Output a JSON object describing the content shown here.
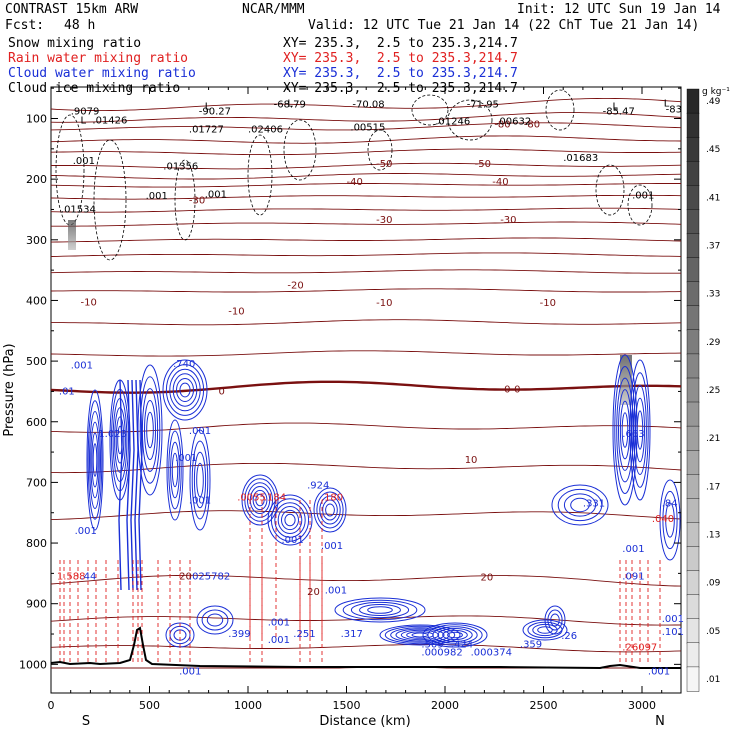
{
  "header": {
    "model": "CONTRAST 15km ARW",
    "org": "NCAR/MMM",
    "init": "Init: 12 UTC Sun 19 Jan 14",
    "fcst_label": "Fcst:",
    "fcst_value": "48 h",
    "valid": "Valid: 12 UTC Tue 21 Jan 14 (22 ChT Tue 21 Jan 14)",
    "fields": [
      {
        "name": "Snow mixing ratio",
        "xy": "XY= 235.3,  2.5 to 235.3,214.7",
        "color": "#000000"
      },
      {
        "name": "Rain water mixing ratio",
        "xy": "XY= 235.3,  2.5 to 235.3,214.7",
        "color": "#e02020"
      },
      {
        "name": "Cloud water mixing ratio",
        "xy": "XY= 235.3,  2.5 to 235.3,214.7",
        "color": "#1a2fd6"
      },
      {
        "name": "Cloud ice mixing ratio",
        "xy": "XY= 235.3,  2.5 to 235.3,214.7",
        "color": "#000000"
      }
    ]
  },
  "colors": {
    "isotherm": "#7a1010",
    "rain": "#e02020",
    "cloud_water": "#1a2fd6",
    "snow": "#000000",
    "terrain": "#000000"
  },
  "chart_data": {
    "type": "cross-section",
    "xlabel": "Distance (km)",
    "ylabel": "Pressure (hPa)",
    "xlim": [
      0,
      3200
    ],
    "ylim": [
      1050,
      50
    ],
    "x_ticks": [
      0,
      500,
      1000,
      1500,
      2000,
      2500,
      3000
    ],
    "y_ticks": [
      100,
      200,
      300,
      400,
      500,
      600,
      700,
      800,
      900,
      1000
    ],
    "end_labels": {
      "left": "S",
      "right": "N"
    },
    "colorbar": {
      "unit": "g kg⁻¹",
      "labels": [
        ".01",
        ".05",
        ".09",
        ".13",
        ".17",
        ".21",
        ".25",
        ".29",
        ".33",
        ".37",
        ".41",
        ".45",
        ".49"
      ]
    },
    "isotherm_labels": [
      {
        "x": 1200,
        "p": 380,
        "text": "-20"
      },
      {
        "x": 700,
        "p": 240,
        "text": "-30"
      },
      {
        "x": 1650,
        "p": 272,
        "text": "-30"
      },
      {
        "x": 2280,
        "p": 272,
        "text": "-30"
      },
      {
        "x": 1500,
        "p": 210,
        "text": "-40"
      },
      {
        "x": 2240,
        "p": 210,
        "text": "-40"
      },
      {
        "x": 1650,
        "p": 180,
        "text": "-50"
      },
      {
        "x": 2150,
        "p": 180,
        "text": "-50"
      },
      {
        "x": 150,
        "p": 408,
        "text": "-10"
      },
      {
        "x": 900,
        "p": 423,
        "text": "-10"
      },
      {
        "x": 1650,
        "p": 409,
        "text": "-10"
      },
      {
        "x": 2480,
        "p": 409,
        "text": "-10"
      },
      {
        "x": 850,
        "p": 555,
        "text": "0"
      },
      {
        "x": 2300,
        "p": 552,
        "text": "0-0"
      },
      {
        "x": 2100,
        "p": 668,
        "text": "10"
      },
      {
        "x": 650,
        "p": 860,
        "text": "20"
      },
      {
        "x": 2180,
        "p": 862,
        "text": "20"
      },
      {
        "x": 1300,
        "p": 886,
        "text": "20"
      },
      {
        "x": 2250,
        "p": 115,
        "text": "-80"
      },
      {
        "x": 2400,
        "p": 115,
        "text": "-80"
      }
    ],
    "extrema": [
      {
        "x": 150,
        "p": 108,
        "text": "L"
      },
      {
        "x": 100,
        "p": 93,
        "text": ".9079"
      },
      {
        "x": 780,
        "p": 85,
        "text": "L"
      },
      {
        "x": 750,
        "p": 93,
        "text": "-90.27"
      },
      {
        "x": 1200,
        "p": 80,
        "text": "L"
      },
      {
        "x": 1130,
        "p": 82,
        "text": "-68.79"
      },
      {
        "x": 1530,
        "p": 82,
        "text": "-70.08"
      },
      {
        "x": 2110,
        "p": 82,
        "text": "-71.95"
      },
      {
        "x": 2850,
        "p": 85,
        "text": "L"
      },
      {
        "x": 2800,
        "p": 93,
        "text": "-85.47"
      },
      {
        "x": 3110,
        "p": 80,
        "text": "L"
      },
      {
        "x": 3120,
        "p": 90,
        "text": "-83"
      },
      {
        "x": 210,
        "p": 108,
        "text": ".01426"
      },
      {
        "x": 700,
        "p": 123,
        "text": ".01727"
      },
      {
        "x": 1000,
        "p": 123,
        "text": ".02406"
      },
      {
        "x": 1520,
        "p": 120,
        "text": ".00515"
      },
      {
        "x": 1950,
        "p": 110,
        "text": ".01246"
      },
      {
        "x": 2260,
        "p": 110,
        "text": ".00632"
      },
      {
        "x": 2600,
        "p": 170,
        "text": ".01683"
      },
      {
        "x": 570,
        "p": 184,
        "text": ".01356"
      },
      {
        "x": 50,
        "p": 255,
        "text": ".01534"
      },
      {
        "x": 110,
        "p": 175,
        "text": ".001"
      },
      {
        "x": 480,
        "p": 233,
        "text": ".001"
      },
      {
        "x": 780,
        "p": 230,
        "text": ".001"
      },
      {
        "x": 2950,
        "p": 232,
        "text": ".001"
      },
      {
        "x": 100,
        "p": 512,
        "text": ".001"
      },
      {
        "x": 620,
        "p": 510,
        "text": ".740"
      },
      {
        "x": 40,
        "p": 555,
        "text": ".01"
      },
      {
        "x": 240,
        "p": 625,
        "text": "1.023"
      },
      {
        "x": 700,
        "p": 620,
        "text": ".001"
      },
      {
        "x": 630,
        "p": 665,
        "text": ".001"
      },
      {
        "x": 2900,
        "p": 625,
        "text": ".663"
      },
      {
        "x": 1300,
        "p": 710,
        "text": ".924"
      },
      {
        "x": 945,
        "p": 730,
        "text": ".0055"
      },
      {
        "x": 1080,
        "p": 730,
        "text": ".184"
      },
      {
        "x": 1370,
        "p": 730,
        "text": ".180"
      },
      {
        "x": 2700,
        "p": 740,
        "text": ".331"
      },
      {
        "x": 3100,
        "p": 740,
        "text": ".84"
      },
      {
        "x": 3050,
        "p": 765,
        "text": ".040"
      },
      {
        "x": 120,
        "p": 785,
        "text": ".001"
      },
      {
        "x": 700,
        "p": 735,
        "text": ".001"
      },
      {
        "x": 1170,
        "p": 800,
        "text": ".001"
      },
      {
        "x": 1370,
        "p": 810,
        "text": ".001"
      },
      {
        "x": 2900,
        "p": 815,
        "text": ".001"
      },
      {
        "x": 30,
        "p": 860,
        "text": "1.588"
      },
      {
        "x": 150,
        "p": 860,
        "text": ".44"
      },
      {
        "x": 700,
        "p": 860,
        "text": ".025782"
      },
      {
        "x": 2900,
        "p": 860,
        "text": ".091"
      },
      {
        "x": 1390,
        "p": 883,
        "text": ".001"
      },
      {
        "x": 1100,
        "p": 936,
        "text": ".001"
      },
      {
        "x": 900,
        "p": 955,
        "text": ".399"
      },
      {
        "x": 1100,
        "p": 965,
        "text": ".001"
      },
      {
        "x": 1230,
        "p": 955,
        "text": ".251"
      },
      {
        "x": 1470,
        "p": 955,
        "text": ".317"
      },
      {
        "x": 1880,
        "p": 972,
        "text": ".509"
      },
      {
        "x": 2030,
        "p": 972,
        "text": ".424"
      },
      {
        "x": 2380,
        "p": 972,
        "text": ".359"
      },
      {
        "x": 2590,
        "p": 958,
        "text": ".26"
      },
      {
        "x": 1880,
        "p": 985,
        "text": ".000982"
      },
      {
        "x": 2130,
        "p": 985,
        "text": ".000374"
      },
      {
        "x": 2900,
        "p": 977,
        "text": ".26097"
      },
      {
        "x": 3100,
        "p": 952,
        "text": ".101"
      },
      {
        "x": 3100,
        "p": 930,
        "text": ".001"
      },
      {
        "x": 650,
        "p": 1017,
        "text": ".001"
      },
      {
        "x": 3030,
        "p": 1017,
        "text": ".001"
      }
    ]
  }
}
